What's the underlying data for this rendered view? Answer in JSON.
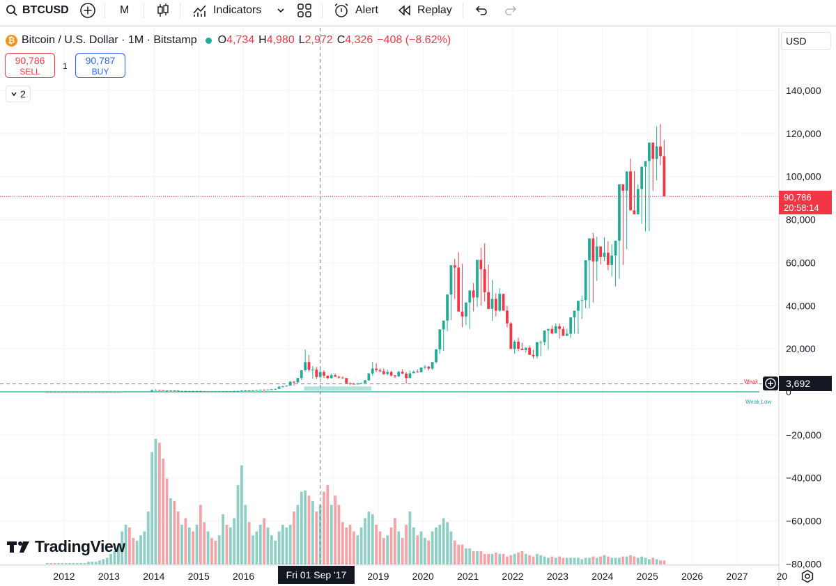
{
  "toolbar": {
    "symbol": "BTCUSD",
    "interval": "M",
    "indicators_label": "Indicators",
    "alert_label": "Alert",
    "replay_label": "Replay"
  },
  "legend": {
    "title": "Bitcoin / U.S. Dollar · 1M · Bitstamp",
    "open_key": "O",
    "open": "4,734",
    "high_key": "H",
    "high": "4,980",
    "low_key": "L",
    "low": "2,972",
    "close_key": "C",
    "close": "4,326",
    "change": "−408 (−8.62%)",
    "coin_glyph": "₿"
  },
  "trade": {
    "sell_price": "90,786",
    "sell_label": "SELL",
    "buy_price": "90,787",
    "buy_label": "BUY",
    "quantity": "1"
  },
  "collapse_count": "2",
  "currency": "USD",
  "price_tag": {
    "price": "90,786",
    "countdown": "20:58:14"
  },
  "crosshair": {
    "date": "Fri 01 Sep '17",
    "price": "3,692"
  },
  "annotations": {
    "weak_high": "Weak",
    "weak_low": "Weak Low"
  },
  "branding": {
    "logo": "TradingView"
  },
  "colors": {
    "up": "#22ab94",
    "down": "#f23645",
    "up_volume": "#8ecfc5",
    "down_volume": "#f4a3a6",
    "grid": "#f0f3fa"
  },
  "chart_data": {
    "type": "candlestick",
    "interval": "monthly",
    "y_range": [
      -80000,
      145000
    ],
    "y_ticks": [
      "140,000",
      "120,000",
      "100,000",
      "80,000",
      "60,000",
      "40,000",
      "20,000",
      "0",
      "−20,000",
      "−40,000",
      "−60,000",
      "−80,000"
    ],
    "y_tick_values": [
      140000,
      120000,
      100000,
      80000,
      60000,
      40000,
      20000,
      0,
      -20000,
      -40000,
      -60000,
      -80000
    ],
    "x_ticks": [
      "2012",
      "2013",
      "2014",
      "2015",
      "2016",
      "2017",
      "2018",
      "2019",
      "2020",
      "2021",
      "2022",
      "2023",
      "2024",
      "2025",
      "2026",
      "2027",
      "20"
    ],
    "x_range_years": [
      2011.5,
      2028.3
    ],
    "last_price": 90786,
    "crosshair_price": 3692,
    "close_series": {
      "start": "2011-08",
      "closes": [
        8,
        5,
        3,
        3,
        4,
        5,
        5,
        5,
        5,
        5,
        6,
        7,
        9,
        10,
        11,
        12,
        13,
        14,
        20,
        33,
        90,
        140,
        120,
        95,
        110,
        125,
        150,
        200,
        650,
        900,
        750,
        580,
        450,
        630,
        580,
        350,
        380,
        320,
        380,
        370,
        390,
        290,
        240,
        250,
        240,
        230,
        260,
        280,
        270,
        290,
        380,
        400,
        600,
        650,
        620,
        700,
        900,
        1000,
        960,
        1080,
        1200,
        1350,
        2400,
        2500,
        2900,
        4700,
        4350,
        6400,
        10000,
        13800,
        10200,
        10300,
        6900,
        9200,
        7500,
        6400,
        7700,
        7000,
        6600,
        6400,
        4000,
        3700,
        3400,
        3800,
        4100,
        5300,
        8500,
        10800,
        10100,
        9600,
        8300,
        9200,
        7600,
        7200,
        9300,
        8500,
        6400,
        8600,
        9400,
        9100,
        11300,
        11700,
        10800,
        13800,
        19700,
        29000,
        33100,
        45200,
        58800,
        57700,
        37300,
        35000,
        41500,
        47100,
        43800,
        61300,
        57000,
        46300,
        38500,
        43200,
        37700,
        45500,
        37700,
        31800,
        19900,
        23300,
        20000,
        19400,
        20500,
        17200,
        16500,
        23100,
        23100,
        28500,
        29200,
        27200,
        30500,
        29200,
        26000,
        27000,
        34600,
        37700,
        42300,
        42600,
        61100,
        71300,
        60600,
        67500,
        62700,
        64600,
        58900,
        63300,
        70200,
        96400,
        93400,
        102400,
        84300,
        82500,
        94200,
        104600,
        107200,
        115800,
        108200,
        114000,
        109500,
        90786
      ],
      "highs": [
        13,
        10,
        6,
        5,
        5,
        6,
        6,
        6,
        6,
        6,
        7,
        8,
        10,
        11,
        12,
        13,
        14,
        16,
        22,
        35,
        95,
        266,
        160,
        130,
        125,
        130,
        160,
        250,
        1150,
        1160,
        950,
        800,
        680,
        680,
        660,
        600,
        460,
        420,
        440,
        420,
        480,
        400,
        310,
        280,
        260,
        260,
        330,
        330,
        300,
        300,
        470,
        470,
        780,
        780,
        720,
        770,
        1000,
        1100,
        1100,
        1120,
        1350,
        1500,
        2700,
        2800,
        2990,
        4980,
        4980,
        6400,
        10000,
        19700,
        17200,
        12000,
        11600,
        11700,
        10000,
        7600,
        8500,
        8500,
        7400,
        7100,
        6500,
        4400,
        4200,
        4200,
        4200,
        5600,
        8800,
        13900,
        13200,
        10950,
        10800,
        10300,
        9850,
        7800,
        9700,
        10500,
        9200,
        9900,
        9900,
        10400,
        11400,
        12500,
        12050,
        13900,
        19900,
        24300,
        29300,
        42000,
        58000,
        61800,
        64800,
        59500,
        41500,
        42500,
        50500,
        52900,
        67000,
        69000,
        59200,
        52000,
        45800,
        48000,
        38800,
        40000,
        32400,
        24000,
        25200,
        22800,
        20400,
        21500,
        19500,
        18400,
        23800,
        25200,
        29200,
        30900,
        31800,
        31800,
        30400,
        29300,
        28500,
        36000,
        39000,
        44700,
        45700,
        49000,
        73800,
        72000,
        64900,
        71800,
        70000,
        68500,
        65000,
        66500,
        73600,
        99500,
        108300,
        102500,
        96400,
        88800,
        95700,
        111900,
        110600,
        123200,
        124400,
        117000,
        126200,
        116000
      ],
      "lows": [
        2,
        2,
        2,
        2,
        3,
        4,
        4,
        4,
        4,
        4,
        5,
        6,
        8,
        9,
        10,
        11,
        12,
        13,
        19,
        30,
        85,
        50,
        80,
        65,
        95,
        110,
        120,
        180,
        460,
        560,
        620,
        520,
        400,
        540,
        540,
        340,
        300,
        300,
        330,
        340,
        340,
        200,
        160,
        210,
        210,
        200,
        220,
        250,
        260,
        250,
        370,
        360,
        400,
        560,
        580,
        620,
        700,
        880,
        900,
        900,
        1000,
        1050,
        1350,
        2200,
        2500,
        2950,
        3000,
        4100,
        5500,
        9500,
        9400,
        6200,
        6000,
        6400,
        6500,
        5800,
        6100,
        7000,
        6200,
        6250,
        3700,
        3200,
        3370,
        3390,
        3700,
        4100,
        5300,
        7500,
        9100,
        9050,
        7800,
        7700,
        7100,
        6500,
        6880,
        8300,
        3850,
        6500,
        8600,
        8900,
        9000,
        10500,
        9900,
        10200,
        13200,
        17600,
        19000,
        28200,
        33300,
        43200,
        50400,
        30000,
        31000,
        29200,
        37400,
        39500,
        40000,
        42000,
        42500,
        33000,
        35000,
        37200,
        37700,
        30000,
        27600,
        17700,
        18900,
        20000,
        18200,
        18200,
        15500,
        15500,
        16500,
        21500,
        19600,
        26700,
        28800,
        24800,
        29500,
        28900,
        25000,
        27000,
        26900,
        34000,
        38800,
        38800,
        41500,
        51500,
        59100,
        60700,
        56500,
        53500,
        49000,
        52500,
        58900,
        66300,
        90800,
        91500,
        89200,
        78100,
        74500,
        74600,
        93300,
        98200,
        105300,
        107000,
        108700,
        101800,
        80600
      ]
    },
    "volume_series": {
      "axis": "separate pane, unlabeled",
      "values": [
        1,
        1,
        1,
        1,
        1,
        1,
        1,
        1,
        1,
        1,
        1,
        2,
        2,
        2,
        3,
        4,
        5,
        8,
        10,
        15,
        25,
        30,
        28,
        20,
        18,
        22,
        25,
        40,
        85,
        95,
        92,
        80,
        65,
        50,
        48,
        40,
        30,
        35,
        28,
        25,
        30,
        45,
        32,
        25,
        20,
        18,
        22,
        38,
        30,
        28,
        35,
        60,
        75,
        45,
        32,
        22,
        25,
        30,
        35,
        28,
        22,
        18,
        25,
        30,
        28,
        30,
        40,
        45,
        55,
        56,
        52,
        48,
        40,
        45,
        55,
        60,
        45,
        52,
        45,
        32,
        28,
        30,
        25,
        22,
        28,
        35,
        40,
        38,
        30,
        25,
        20,
        22,
        28,
        35,
        25,
        20,
        30,
        40,
        28,
        22,
        25,
        20,
        18,
        25,
        28,
        30,
        35,
        32,
        25,
        18,
        15,
        15,
        12,
        12,
        10,
        10,
        10,
        8,
        8,
        8,
        9,
        8,
        8,
        6,
        7,
        8,
        9,
        10,
        8,
        7,
        6,
        8,
        7,
        6,
        5,
        6,
        5,
        6,
        5,
        5,
        5,
        5,
        5,
        4,
        5,
        5,
        6,
        5,
        6,
        7,
        6,
        5,
        5,
        5,
        6,
        6,
        7,
        6,
        5,
        6,
        5,
        4,
        5,
        4,
        3,
        3,
        5,
        3,
        4
      ]
    }
  }
}
